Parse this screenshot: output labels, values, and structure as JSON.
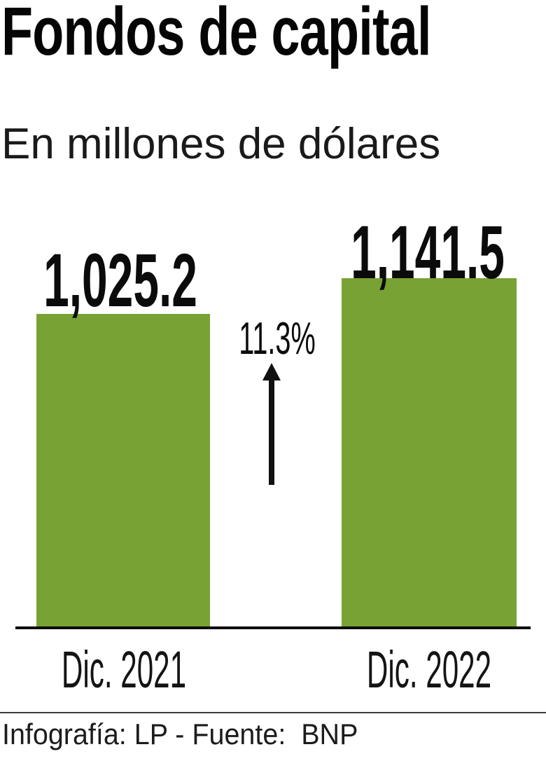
{
  "header": {
    "title": "Fondos de capital",
    "subtitle": "En millones de dólares"
  },
  "chart_data": {
    "type": "bar",
    "title": "Fondos de capital",
    "subtitle": "En millones de dólares",
    "unit": "millones de dólares",
    "categories": [
      "Dic. 2021",
      "Dic. 2022"
    ],
    "values": [
      1025.2,
      1141.5
    ],
    "value_labels": [
      "1,025.2",
      "1,141.5"
    ],
    "ylim": [
      0,
      1150
    ],
    "grid": false,
    "legend": false,
    "bar_color": "#78a233",
    "annotation": {
      "text": "11.3%",
      "meaning": "percent increase from Dic. 2021 to Dic. 2022",
      "icon": "up-arrow-icon"
    }
  },
  "annotation": {
    "change_label": "11.3%"
  },
  "footer": {
    "credit": "Infografía: LP - Fuente:  BNP"
  },
  "colors": {
    "bar_green": "#78a233",
    "text_black": "#0b0b0b",
    "baseline": "#0d0d0d",
    "divider": "#3c3c3c"
  }
}
